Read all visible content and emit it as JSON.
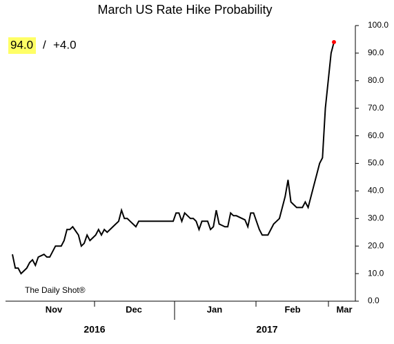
{
  "chart_data": {
    "type": "line",
    "title": "March US Rate Hike Probability",
    "series": [
      {
        "name": "March US Rate Hike Probability",
        "color": "#000000",
        "last_marker_color": "#ff0000",
        "values": [
          17,
          12,
          12,
          10,
          11,
          12,
          14,
          15,
          13,
          16,
          16.5,
          17,
          16,
          16,
          18,
          20,
          20,
          20,
          22,
          26,
          26,
          27,
          25.5,
          24,
          20,
          21,
          24,
          22,
          23,
          24,
          26,
          24,
          26,
          25,
          26,
          27,
          28,
          29,
          33,
          30,
          30,
          29,
          28,
          27,
          29,
          29,
          29,
          29,
          29,
          29,
          29,
          29,
          29,
          29,
          29,
          29,
          29,
          32,
          32,
          29,
          32,
          31,
          30,
          30,
          29,
          26,
          29,
          29,
          29,
          26,
          27,
          33,
          28,
          27.5,
          27,
          27,
          32,
          31,
          31,
          30.5,
          30,
          29.5,
          27,
          32,
          32,
          29,
          26,
          24,
          24,
          24,
          26,
          28,
          29,
          30,
          34,
          38,
          44,
          36,
          35,
          34,
          34,
          34,
          36,
          34,
          38,
          42,
          46,
          50,
          52,
          70,
          80,
          90,
          94
        ]
      }
    ],
    "months": [
      "Nov",
      "Dec",
      "Jan",
      "Feb",
      "Mar"
    ],
    "years": [
      "2016",
      "2017"
    ],
    "ylim": [
      0,
      100
    ],
    "yticks": [
      {
        "value": 0,
        "label": "0.0"
      },
      {
        "value": 10,
        "label": "10.0"
      },
      {
        "value": 20,
        "label": "20.0"
      },
      {
        "value": 30,
        "label": "30.0"
      },
      {
        "value": 40,
        "label": "40.0"
      },
      {
        "value": 50,
        "label": "50.0"
      },
      {
        "value": 60,
        "label": "60.0"
      },
      {
        "value": 70,
        "label": "70.0"
      },
      {
        "value": 80,
        "label": "80.0"
      },
      {
        "value": 90,
        "label": "90.0"
      },
      {
        "value": 100,
        "label": "100.0"
      }
    ],
    "grid": false,
    "annotation": {
      "value": "94.0",
      "separator": "/",
      "change": "+4.0"
    },
    "source": "The Daily Shot®"
  }
}
